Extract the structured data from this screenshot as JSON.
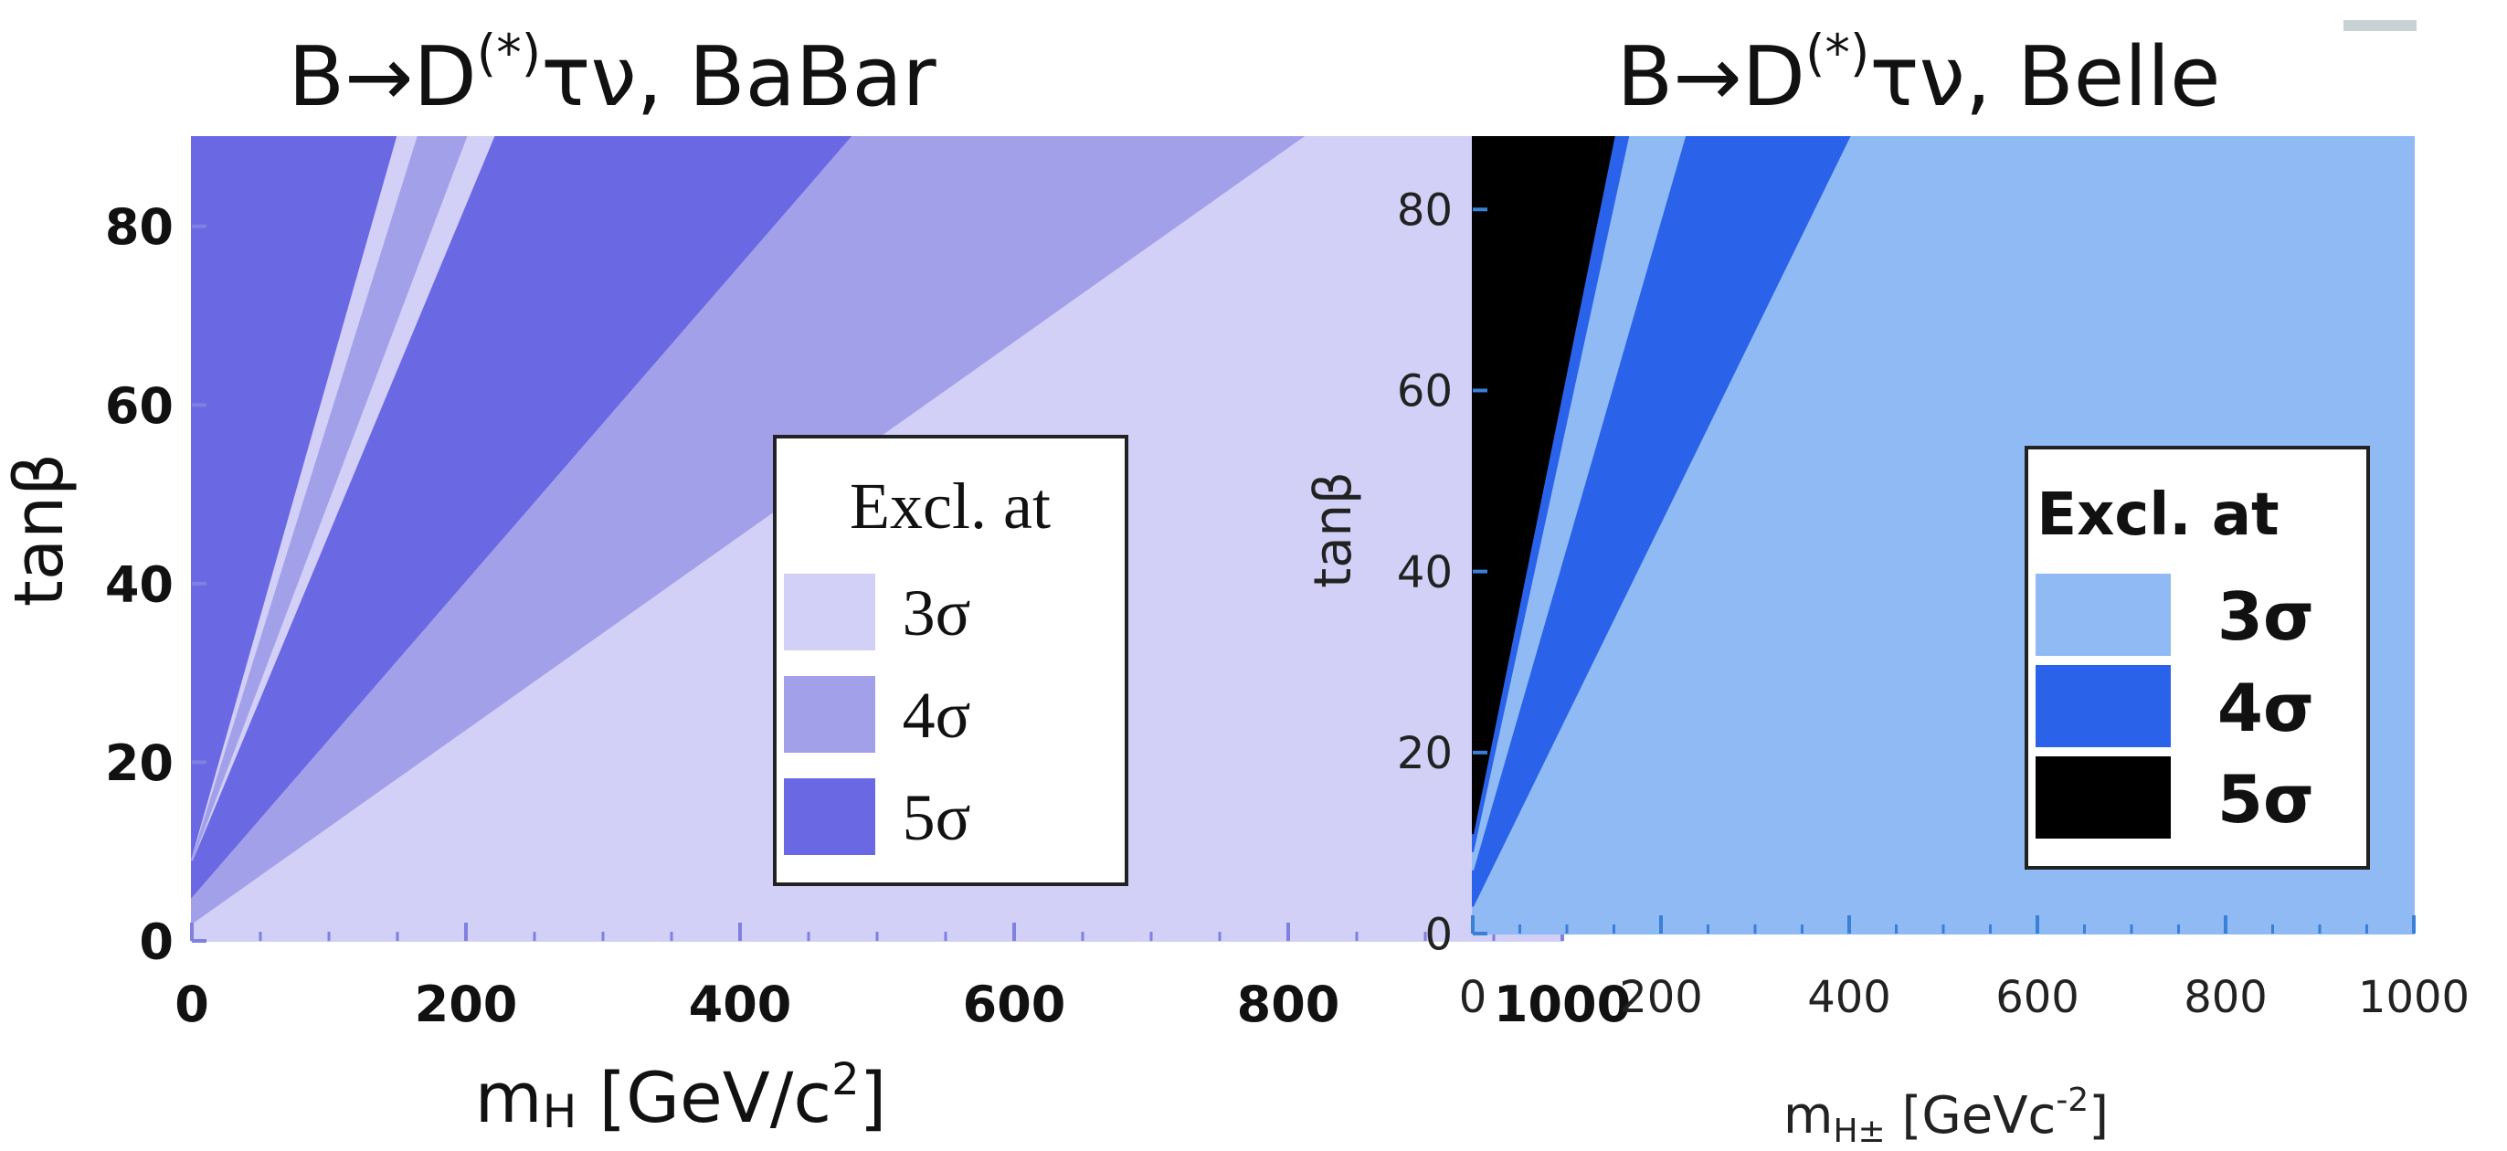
{
  "chart_data": [
    {
      "type": "heatmap",
      "title": "B→D(*)τν, BaBar",
      "title_parts": {
        "main": "B→D",
        "sup": "(*)",
        "rest": "τν, BaBar"
      },
      "xlabel": "m",
      "xlabel_sub": "H",
      "xlabel_rest": " [GeV/c",
      "xlabel_sup": "2",
      "xlabel_end": "]",
      "ylabel": "tanβ",
      "xlim": [
        0,
        1000
      ],
      "ylim": [
        0,
        90
      ],
      "xticks": [
        "0",
        "200",
        "400",
        "600",
        "800",
        "1000"
      ],
      "yticks": [
        "0",
        "20",
        "40",
        "60",
        "80"
      ],
      "legend_title": "Excl. at",
      "legend_position": "center-right",
      "series": [
        {
          "name": "3σ",
          "color": "#d2d0f6"
        },
        {
          "name": "4σ",
          "color": "#a3a0ea"
        },
        {
          "name": "5σ",
          "color": "#6b68e4"
        }
      ],
      "regions": [
        {
          "level": "3σ",
          "polygon": [
            [
              0,
              0
            ],
            [
              1000,
              0
            ],
            [
              1000,
              90
            ],
            [
              0,
              90
            ]
          ]
        },
        {
          "level": "4σ",
          "polygon": [
            [
              0,
              2
            ],
            [
              0,
              90
            ],
            [
              810,
              90
            ]
          ]
        },
        {
          "level": "5σ",
          "polygon": [
            [
              0,
              5
            ],
            [
              0,
              90
            ],
            [
              480,
              90
            ]
          ]
        },
        {
          "level": "3σ",
          "polygon": [
            [
              0,
              9
            ],
            [
              150,
              90
            ],
            [
              220,
              90
            ]
          ]
        },
        {
          "level": "4σ",
          "polygon": [
            [
              0,
              9
            ],
            [
              165,
              90
            ],
            [
              200,
              90
            ]
          ]
        }
      ]
    },
    {
      "type": "heatmap",
      "title": "B→D(*)τν, Belle",
      "title_parts": {
        "main": "B→D",
        "sup": "(*)",
        "rest": "τν, Belle"
      },
      "xlabel": "m",
      "xlabel_sub": "H±",
      "xlabel_rest": " [GeVc",
      "xlabel_sup": "-2",
      "xlabel_end": "]",
      "ylabel": "tanβ",
      "xlim": [
        0,
        1000
      ],
      "ylim": [
        0,
        88
      ],
      "xticks": [
        "0",
        "200",
        "400",
        "600",
        "800",
        "1000"
      ],
      "yticks": [
        "0",
        "20",
        "40",
        "60",
        "80"
      ],
      "legend_title": "Excl. at",
      "legend_position": "center-right",
      "series": [
        {
          "name": "3σ",
          "color": "#8fbaf3"
        },
        {
          "name": "4σ",
          "color": "#2a63ea"
        },
        {
          "name": "5σ",
          "color": "#000000"
        }
      ],
      "regions": [
        {
          "level": "3σ",
          "polygon": [
            [
              0,
              0
            ],
            [
              1000,
              0
            ],
            [
              1000,
              88
            ],
            [
              0,
              88
            ]
          ]
        },
        {
          "level": "4σ",
          "polygon": [
            [
              0,
              3
            ],
            [
              0,
              88
            ],
            [
              400,
              88
            ]
          ]
        },
        {
          "level": "3σ",
          "polygon": [
            [
              0,
              7
            ],
            [
              0,
              88
            ],
            [
              225,
              88
            ]
          ]
        },
        {
          "level": "4σ",
          "polygon": [
            [
              0,
              9
            ],
            [
              0,
              88
            ],
            [
              165,
              88
            ]
          ]
        },
        {
          "level": "5σ",
          "polygon": [
            [
              0,
              11
            ],
            [
              0,
              88
            ],
            [
              150,
              88
            ]
          ]
        }
      ]
    }
  ]
}
